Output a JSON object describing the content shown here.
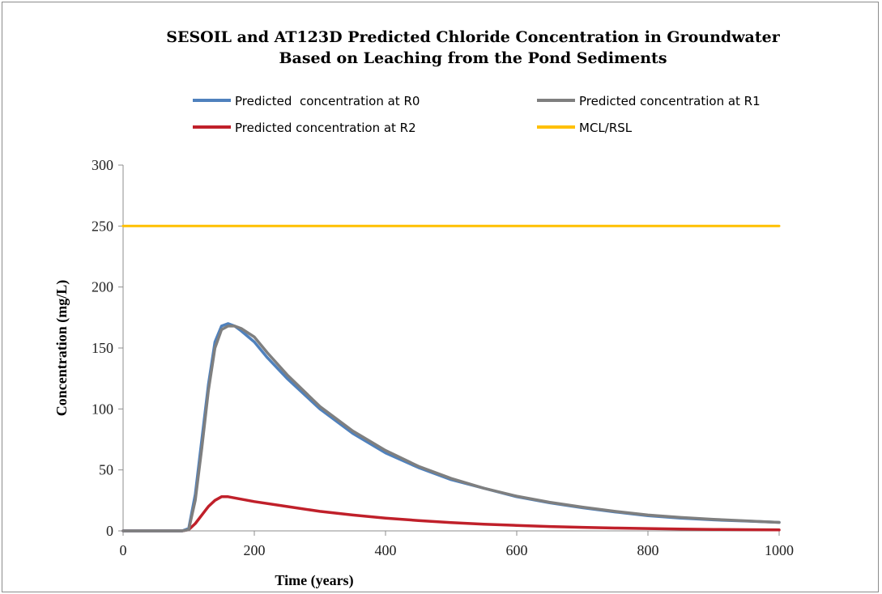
{
  "chart_data": {
    "type": "line",
    "title": "SESOIL and AT123D Predicted Chloride Concentration in Groundwater",
    "subtitle": "Based on Leaching from the Pond Sediments",
    "xlabel": "Time (years)",
    "ylabel": "Concentration (mg/L)",
    "xlim": [
      0,
      1000
    ],
    "ylim": [
      0,
      300
    ],
    "xticks": [
      0,
      200,
      400,
      600,
      800,
      1000
    ],
    "yticks": [
      0,
      50,
      100,
      150,
      200,
      250,
      300
    ],
    "grid": false,
    "legend_position": "top",
    "series": [
      {
        "name": "Predicted  concentration at R0",
        "color": "#4F81BD",
        "x": [
          0,
          50,
          90,
          100,
          110,
          120,
          130,
          140,
          150,
          160,
          170,
          180,
          200,
          220,
          250,
          300,
          350,
          400,
          450,
          500,
          550,
          600,
          650,
          700,
          750,
          800,
          850,
          900,
          950,
          1000
        ],
        "y": [
          0,
          0,
          0,
          2,
          30,
          75,
          120,
          155,
          168,
          170,
          168,
          164,
          155,
          142,
          125,
          100,
          80,
          64,
          52,
          42,
          35,
          28,
          23,
          19,
          15.5,
          12.5,
          10.5,
          9,
          8,
          7
        ]
      },
      {
        "name": "Predicted concentration at R1",
        "color": "#7F7F7F",
        "x": [
          0,
          50,
          90,
          100,
          110,
          120,
          130,
          140,
          150,
          160,
          170,
          180,
          200,
          220,
          250,
          300,
          350,
          400,
          450,
          500,
          550,
          600,
          650,
          700,
          750,
          800,
          850,
          900,
          950,
          1000
        ],
        "y": [
          0,
          0,
          0,
          1,
          25,
          68,
          115,
          150,
          165,
          168,
          168,
          166,
          159,
          146,
          128,
          102,
          82,
          66,
          53,
          43,
          35,
          28.5,
          23.5,
          19.5,
          16,
          13,
          11,
          9.5,
          8.2,
          7
        ]
      },
      {
        "name": "Predicted concentration at R2",
        "color": "#C0202A",
        "x": [
          0,
          50,
          90,
          100,
          110,
          120,
          130,
          140,
          150,
          160,
          170,
          180,
          200,
          250,
          300,
          350,
          400,
          450,
          500,
          550,
          600,
          650,
          700,
          750,
          800,
          850,
          900,
          950,
          1000
        ],
        "y": [
          0,
          0,
          0,
          1,
          6,
          13,
          20,
          25,
          28,
          28,
          27,
          26,
          24,
          20,
          16,
          13,
          10.5,
          8.5,
          6.8,
          5.5,
          4.5,
          3.6,
          2.9,
          2.3,
          1.9,
          1.5,
          1.2,
          1.0,
          0.8
        ]
      },
      {
        "name": "MCL/RSL",
        "color": "#FFC000",
        "x": [
          0,
          1000
        ],
        "y": [
          250,
          250
        ]
      }
    ]
  }
}
